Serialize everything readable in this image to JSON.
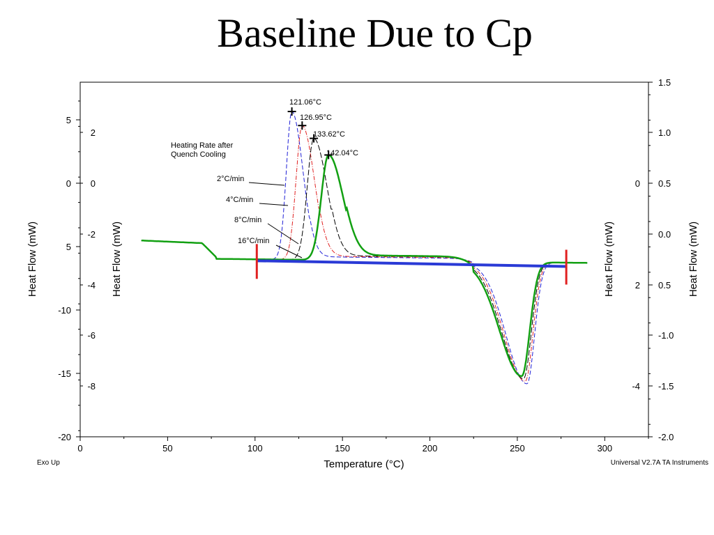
{
  "title": "Baseline Due to Cp",
  "chart_data": {
    "type": "line",
    "xlabel": "Temperature (°C)",
    "xlim": [
      0,
      325
    ],
    "x_ticks": [
      "0",
      "50",
      "100",
      "150",
      "200",
      "250",
      "300"
    ],
    "left_axes": [
      {
        "label": "Heat Flow (mW)",
        "ticks": [
          "5",
          "0",
          "5",
          "-10",
          "-15",
          "-20"
        ]
      },
      {
        "label": "Heat Flow (mW)",
        "ticks": [
          "2",
          "0",
          "-2",
          "-4",
          "-6",
          "-8"
        ]
      }
    ],
    "right_axes": [
      {
        "label": "Heat Flow (mW)",
        "ticks": [
          "0",
          "2",
          "-4"
        ]
      },
      {
        "label": "Heat Flow (mW)",
        "ticks": [
          "1.5",
          "1.0",
          "0.5",
          "0.0",
          "0.5",
          "-1.0",
          "-1.5",
          "-2.0"
        ]
      }
    ],
    "footer_left": "Exo Up",
    "footer_right": "Universal V2.7A TA Instruments",
    "legend_title": "Heating Rate after Quench Cooling",
    "colors": {
      "blue": "#1f1fd6",
      "red": "#e02020",
      "black": "#000000",
      "green": "#12a012",
      "baseline": "#2a3ad6",
      "marker": "#e02020"
    },
    "series": [
      {
        "name": "2°C/min",
        "color": "blue",
        "peak_label": "121.06°C"
      },
      {
        "name": "4°C/min",
        "color": "red",
        "peak_label": "126.95°C"
      },
      {
        "name": "8°C/min",
        "color": "black",
        "peak_label": "133.62°C"
      },
      {
        "name": "16°C/min",
        "color": "green",
        "peak_label": "142.04°C"
      }
    ],
    "baseline": {
      "from": [
        101,
        -6.1
      ],
      "to": [
        278,
        -6.55
      ]
    },
    "markers": [
      101,
      278
    ]
  }
}
